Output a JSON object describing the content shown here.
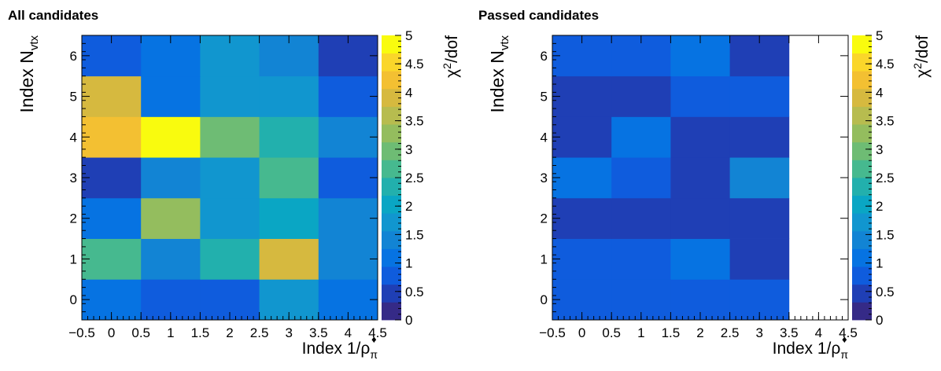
{
  "chart_data": [
    {
      "type": "heatmap",
      "title": "All candidates",
      "xlabel_main": "Index 1/ρ",
      "xlabel_sub": "π",
      "xlabel_sup": "♦",
      "ylabel_main": "Index N",
      "ylabel_sub": "vtx",
      "zlabel_main": "χ",
      "zlabel_sup": "2",
      "zlabel_rest": "/dof",
      "x_range": [
        -0.5,
        4.5
      ],
      "y_range": [
        -0.5,
        6.5
      ],
      "z_range": [
        0,
        5
      ],
      "x_tick_labels": [
        "−0.5",
        "0",
        "0.5",
        "1",
        "1.5",
        "2",
        "2.5",
        "3",
        "3.5",
        "4",
        "4.5"
      ],
      "y_tick_labels": [
        "0",
        "1",
        "2",
        "3",
        "4",
        "5",
        "6"
      ],
      "z_tick_labels": [
        "0",
        "0.5",
        "1",
        "1.5",
        "2",
        "2.5",
        "3",
        "3.5",
        "4",
        "4.5",
        "5"
      ],
      "values": [
        [
          1.2,
          0.8,
          0.8,
          1.7,
          1.1
        ],
        [
          2.8,
          1.4,
          2.2,
          3.8,
          1.3
        ],
        [
          1.2,
          3.2,
          1.8,
          2.1,
          1.4
        ],
        [
          0.6,
          1.4,
          1.6,
          2.6,
          0.9
        ],
        [
          4.2,
          5.0,
          2.9,
          2.3,
          1.4
        ],
        [
          4.0,
          1.2,
          1.6,
          1.6,
          0.8
        ],
        [
          0.9,
          1.1,
          1.6,
          1.3,
          0.4
        ]
      ]
    },
    {
      "type": "heatmap",
      "title": "Passed candidates",
      "xlabel_main": "Index 1/ρ",
      "xlabel_sub": "π",
      "xlabel_sup": "♦",
      "ylabel_main": "Index N",
      "ylabel_sub": "vtx",
      "zlabel_main": "χ",
      "zlabel_sup": "2",
      "zlabel_rest": "/dof",
      "x_range": [
        -0.5,
        4.5
      ],
      "y_range": [
        -0.5,
        6.5
      ],
      "z_range": [
        0,
        5
      ],
      "x_tick_labels": [
        "−0.5",
        "0",
        "0.5",
        "1",
        "1.5",
        "2",
        "2.5",
        "3",
        "3.5",
        "4",
        "4.5"
      ],
      "y_tick_labels": [
        "0",
        "1",
        "2",
        "3",
        "4",
        "5",
        "6"
      ],
      "z_tick_labels": [
        "0",
        "0.5",
        "1",
        "1.5",
        "2",
        "2.5",
        "3",
        "3.5",
        "4",
        "4.5",
        "5"
      ],
      "values": [
        [
          0.7,
          0.7,
          0.8,
          0.8,
          null
        ],
        [
          0.8,
          0.7,
          1.1,
          0.4,
          null
        ],
        [
          0.6,
          0.5,
          0.6,
          0.6,
          null
        ],
        [
          1.1,
          0.8,
          0.6,
          1.3,
          null
        ],
        [
          0.4,
          1.1,
          0.6,
          0.6,
          null
        ],
        [
          0.6,
          0.4,
          0.7,
          0.8,
          null
        ],
        [
          0.9,
          0.9,
          1.1,
          0.4,
          null
        ]
      ]
    }
  ],
  "palette": [
    "#352a87",
    "#1f3fb5",
    "#0f5cdd",
    "#0673e2",
    "#1284d4",
    "#1196cf",
    "#0aa6c4",
    "#22b0ad",
    "#46b98f",
    "#6ebc74",
    "#94bd5e",
    "#b7bc4f",
    "#d6b93f",
    "#f3c032",
    "#fad62a",
    "#f9fb0e"
  ]
}
